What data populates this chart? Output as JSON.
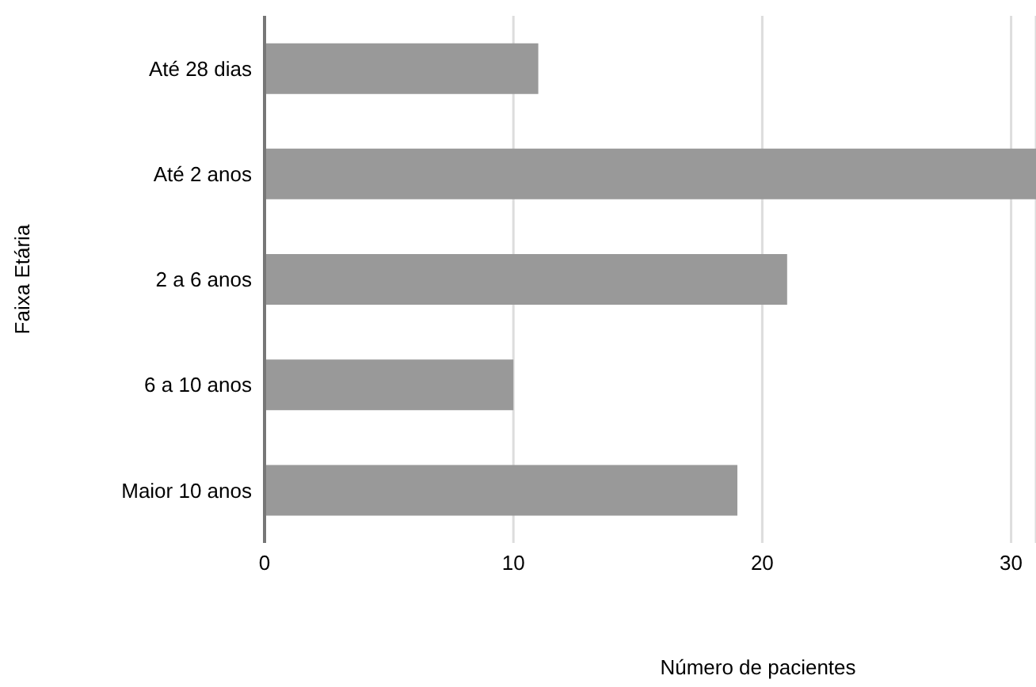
{
  "chart_data": {
    "type": "bar",
    "orientation": "horizontal",
    "categories": [
      "Até 28 dias",
      "Até 2 anos",
      "2 a 6 anos",
      "6 a 10 anos",
      "Maior 10 anos"
    ],
    "values": [
      11,
      31,
      21,
      10,
      19
    ],
    "color": "#999999",
    "xlim": [
      0,
      31
    ],
    "xticks": [
      0,
      10,
      20,
      30
    ],
    "grid": "x",
    "xlabel": "Número de pacientes",
    "ylabel": "Faixa Etária"
  }
}
